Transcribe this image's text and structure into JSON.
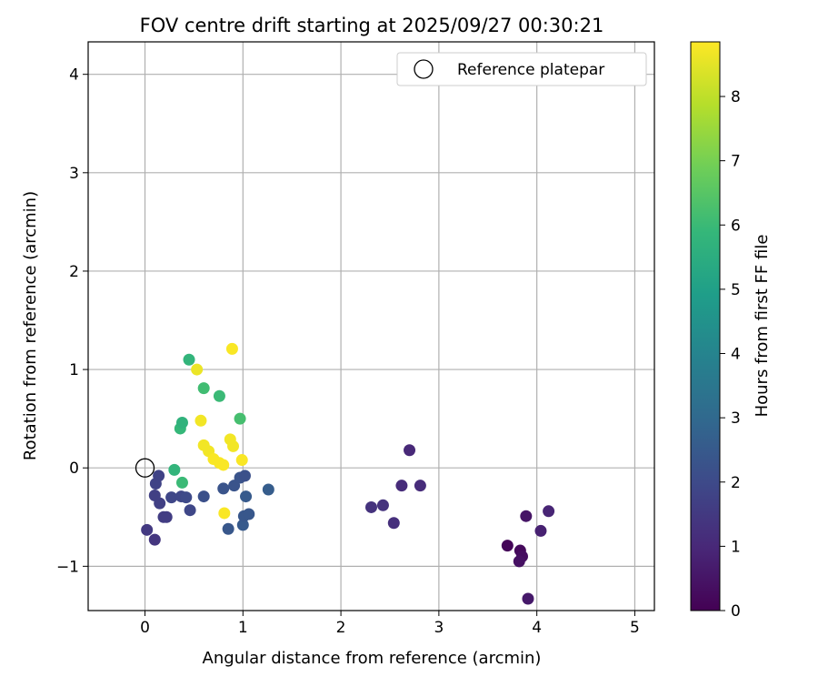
{
  "chart_data": {
    "type": "scatter",
    "title": "FOV centre drift starting at 2025/09/27 00:30:21",
    "xlabel": "Angular distance from reference (arcmin)",
    "ylabel": "Rotation from reference (arcmin)",
    "xlim": [
      -0.58,
      5.2
    ],
    "ylim": [
      -1.45,
      4.33
    ],
    "xticks": [
      0,
      1,
      2,
      3,
      4,
      5
    ],
    "yticks": [
      -1,
      0,
      1,
      2,
      3,
      4
    ],
    "xtick_labels": [
      "0",
      "1",
      "2",
      "3",
      "4",
      "5"
    ],
    "ytick_labels": [
      "−1",
      "0",
      "1",
      "2",
      "3",
      "4"
    ],
    "grid": true,
    "legend": {
      "position": "top-right",
      "label": "Reference platepar",
      "marker": "open-circle"
    },
    "reference_point": {
      "x": 0,
      "y": 0
    },
    "colorbar": {
      "label": "Hours from first FF file",
      "min": 0,
      "max": 8.85,
      "ticks": [
        0,
        1,
        2,
        3,
        4,
        5,
        6,
        7,
        8
      ],
      "colormap": [
        "#440154",
        "#482878",
        "#3e4989",
        "#31688e",
        "#26828e",
        "#1f9e89",
        "#35b779",
        "#6ece58",
        "#b5de2b",
        "#fde725"
      ]
    },
    "points": [
      {
        "x": 3.7,
        "y": -0.79,
        "c": 0.1
      },
      {
        "x": 3.83,
        "y": -0.84,
        "c": 0.2
      },
      {
        "x": 3.85,
        "y": -0.9,
        "c": 0.3
      },
      {
        "x": 3.82,
        "y": -0.95,
        "c": 0.4
      },
      {
        "x": 3.89,
        "y": -0.49,
        "c": 0.5
      },
      {
        "x": 3.91,
        "y": -1.33,
        "c": 0.6
      },
      {
        "x": 4.04,
        "y": -0.64,
        "c": 0.8
      },
      {
        "x": 4.12,
        "y": -0.44,
        "c": 0.9
      },
      {
        "x": 2.7,
        "y": 0.18,
        "c": 1.0
      },
      {
        "x": 2.62,
        "y": -0.18,
        "c": 1.1
      },
      {
        "x": 2.81,
        "y": -0.18,
        "c": 1.1
      },
      {
        "x": 2.54,
        "y": -0.56,
        "c": 1.2
      },
      {
        "x": 2.31,
        "y": -0.4,
        "c": 1.3
      },
      {
        "x": 2.43,
        "y": -0.38,
        "c": 1.3
      },
      {
        "x": 0.1,
        "y": -0.73,
        "c": 1.4
      },
      {
        "x": 0.02,
        "y": -0.63,
        "c": 1.5
      },
      {
        "x": 0.19,
        "y": -0.5,
        "c": 1.6
      },
      {
        "x": 0.22,
        "y": -0.5,
        "c": 1.6
      },
      {
        "x": 0.15,
        "y": -0.36,
        "c": 1.7
      },
      {
        "x": 0.1,
        "y": -0.28,
        "c": 1.7
      },
      {
        "x": 0.11,
        "y": -0.16,
        "c": 1.8
      },
      {
        "x": 0.14,
        "y": -0.08,
        "c": 1.8
      },
      {
        "x": 0.27,
        "y": -0.3,
        "c": 1.9
      },
      {
        "x": 0.37,
        "y": -0.29,
        "c": 1.9
      },
      {
        "x": 0.42,
        "y": -0.3,
        "c": 2.0
      },
      {
        "x": 0.46,
        "y": -0.43,
        "c": 1.9
      },
      {
        "x": 0.6,
        "y": -0.29,
        "c": 2.2
      },
      {
        "x": 0.8,
        "y": -0.21,
        "c": 2.3
      },
      {
        "x": 0.91,
        "y": -0.18,
        "c": 2.3
      },
      {
        "x": 0.97,
        "y": -0.1,
        "c": 2.3
      },
      {
        "x": 1.02,
        "y": -0.08,
        "c": 2.2
      },
      {
        "x": 0.85,
        "y": -0.62,
        "c": 2.4
      },
      {
        "x": 1.0,
        "y": -0.58,
        "c": 2.5
      },
      {
        "x": 1.01,
        "y": -0.49,
        "c": 2.4
      },
      {
        "x": 1.06,
        "y": -0.47,
        "c": 2.4
      },
      {
        "x": 1.03,
        "y": -0.29,
        "c": 2.5
      },
      {
        "x": 1.26,
        "y": -0.22,
        "c": 2.6
      },
      {
        "x": 0.3,
        "y": -0.02,
        "c": 5.8
      },
      {
        "x": 0.38,
        "y": -0.15,
        "c": 6.0
      },
      {
        "x": 0.36,
        "y": 0.4,
        "c": 5.9
      },
      {
        "x": 0.38,
        "y": 0.46,
        "c": 5.7
      },
      {
        "x": 0.45,
        "y": 1.1,
        "c": 5.8
      },
      {
        "x": 0.6,
        "y": 0.81,
        "c": 6.1
      },
      {
        "x": 0.76,
        "y": 0.73,
        "c": 6.0
      },
      {
        "x": 0.97,
        "y": 0.5,
        "c": 6.2
      },
      {
        "x": 0.53,
        "y": 1.0,
        "c": 8.6
      },
      {
        "x": 0.57,
        "y": 0.48,
        "c": 8.7
      },
      {
        "x": 0.6,
        "y": 0.23,
        "c": 8.7
      },
      {
        "x": 0.65,
        "y": 0.17,
        "c": 8.7
      },
      {
        "x": 0.7,
        "y": 0.09,
        "c": 8.8
      },
      {
        "x": 0.76,
        "y": 0.05,
        "c": 8.8
      },
      {
        "x": 0.8,
        "y": 0.03,
        "c": 8.8
      },
      {
        "x": 0.87,
        "y": 0.29,
        "c": 8.7
      },
      {
        "x": 0.9,
        "y": 0.22,
        "c": 8.7
      },
      {
        "x": 0.99,
        "y": 0.08,
        "c": 8.8
      },
      {
        "x": 0.89,
        "y": 1.21,
        "c": 8.8
      },
      {
        "x": 0.81,
        "y": -0.46,
        "c": 8.8
      }
    ]
  }
}
